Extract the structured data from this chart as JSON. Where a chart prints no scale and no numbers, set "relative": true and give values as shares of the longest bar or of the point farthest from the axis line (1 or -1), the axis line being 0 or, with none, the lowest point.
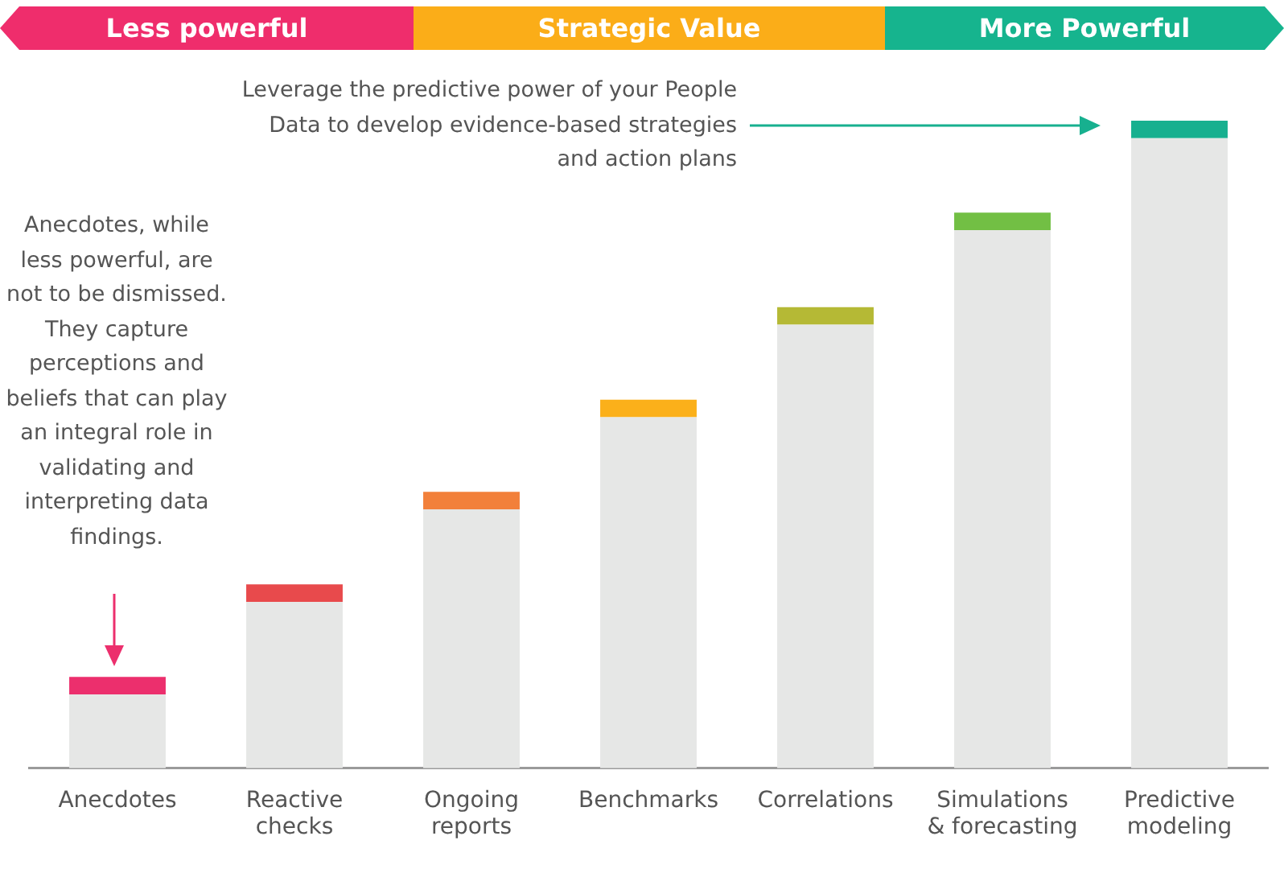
{
  "chart_data": {
    "type": "bar",
    "relative": true,
    "stacked": true,
    "legend": false,
    "grid": false,
    "categories": [
      "Anecdotes",
      "Reactive checks",
      "Ongoing reports",
      "Benchmarks",
      "Correlations",
      "Simulations & forecasting",
      "Predictive modeling"
    ],
    "series": [
      {
        "color": "#e6e7e6",
        "values": [
          0.114,
          0.257,
          0.4,
          0.542,
          0.685,
          0.831,
          0.973
        ]
      },
      {
        "colors": [
          "#ec2f6d",
          "#e84a4c",
          "#f2803a",
          "#fbb01a",
          "#b5b935",
          "#72bf44",
          "#17b08f"
        ],
        "values": [
          0.027,
          0.027,
          0.027,
          0.027,
          0.027,
          0.027,
          0.027
        ]
      }
    ],
    "annotations": [
      "Less powerful",
      "Strategic Value",
      "More Powerful",
      "Anecdotes, while less powerful, are not to be dismissed. They capture perceptions and beliefs that can play an integral role in validating and interpreting data findings.",
      "Leverage the predictive power of your People Data to develop evidence-based strategies and action plans"
    ]
  }
}
